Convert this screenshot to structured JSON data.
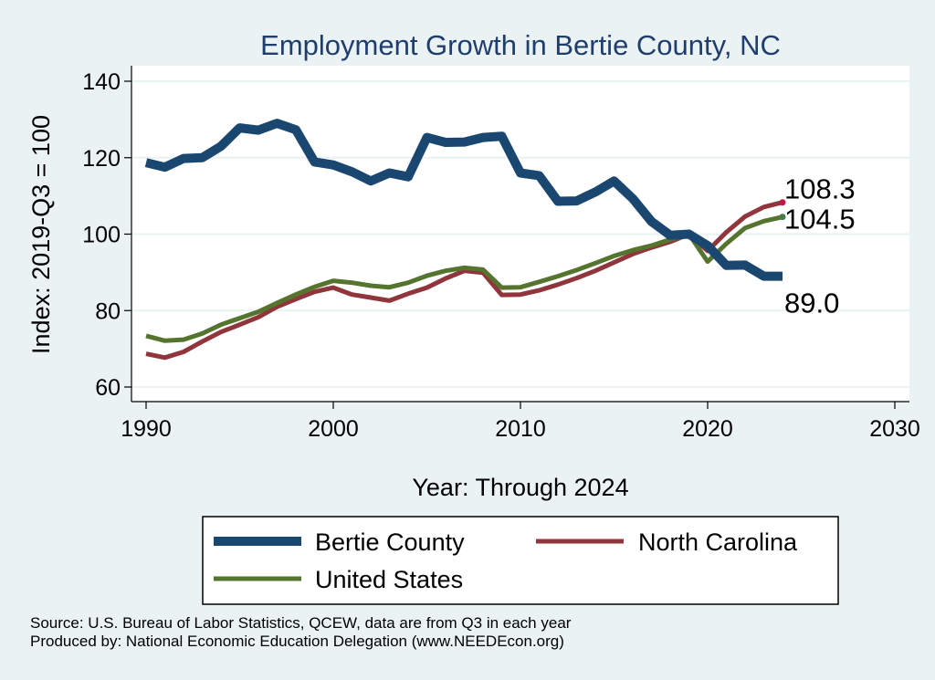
{
  "chart_data": {
    "type": "line",
    "title": "Employment Growth in Bertie County, NC",
    "xlabel": "Year: Through 2024",
    "ylabel": "Index: 2019-Q3 = 100",
    "xlim": [
      1990,
      2030
    ],
    "ylim": [
      57,
      143
    ],
    "xticks": [
      1990,
      2000,
      2010,
      2020,
      2030
    ],
    "yticks": [
      60,
      80,
      100,
      120,
      140
    ],
    "grid": true,
    "legend_position": "bottom",
    "x": [
      1990,
      1991,
      1992,
      1993,
      1994,
      1995,
      1996,
      1997,
      1998,
      1999,
      2000,
      2001,
      2002,
      2003,
      2004,
      2005,
      2006,
      2007,
      2008,
      2009,
      2010,
      2011,
      2012,
      2013,
      2014,
      2015,
      2016,
      2017,
      2018,
      2019,
      2020,
      2021,
      2022,
      2023,
      2024
    ],
    "series": [
      {
        "name": "Bertie  County",
        "color": "#1a476f",
        "values": [
          118.7,
          117.5,
          119.8,
          120.0,
          123.0,
          127.8,
          127.2,
          129.0,
          127.3,
          118.9,
          118.1,
          116.3,
          113.9,
          116.0,
          115.0,
          125.3,
          124.0,
          124.1,
          125.3,
          125.6,
          116.0,
          115.3,
          108.6,
          108.7,
          111.0,
          113.9,
          109.3,
          103.3,
          99.7,
          100.0,
          97.0,
          91.8,
          91.9,
          89.0,
          89.0
        ],
        "end_label": "89.0"
      },
      {
        "name": "North Carolina",
        "color": "#90353b",
        "values": [
          68.7,
          67.7,
          69.2,
          71.9,
          74.4,
          76.3,
          78.3,
          81.0,
          83.0,
          84.9,
          86.0,
          84.2,
          83.4,
          82.6,
          84.4,
          86.0,
          88.4,
          90.4,
          89.9,
          84.1,
          84.2,
          85.3,
          86.8,
          88.5,
          90.4,
          92.6,
          94.8,
          96.5,
          98.0,
          100.0,
          95.6,
          100.5,
          104.6,
          107.1,
          108.3
        ],
        "end_label": "108.3",
        "end_marker_color": "#c0174a"
      },
      {
        "name": "United States",
        "color": "#55752f",
        "values": [
          73.4,
          72.1,
          72.4,
          74.0,
          76.3,
          78.0,
          79.7,
          82.0,
          84.2,
          86.2,
          87.8,
          87.3,
          86.5,
          86.1,
          87.3,
          89.1,
          90.4,
          91.2,
          90.7,
          86.0,
          86.1,
          87.5,
          89.0,
          90.6,
          92.4,
          94.3,
          95.8,
          97.0,
          98.6,
          100.0,
          92.8,
          97.5,
          101.6,
          103.4,
          104.5
        ],
        "end_label": "104.5",
        "end_marker_color": "#4c7a4e"
      }
    ]
  },
  "source_lines": [
    "Source: U.S. Bureau of Labor Statistics, QCEW, data are from Q3 in each year",
    "Produced by: National Economic Education Delegation (www.NEEDEcon.org)"
  ]
}
